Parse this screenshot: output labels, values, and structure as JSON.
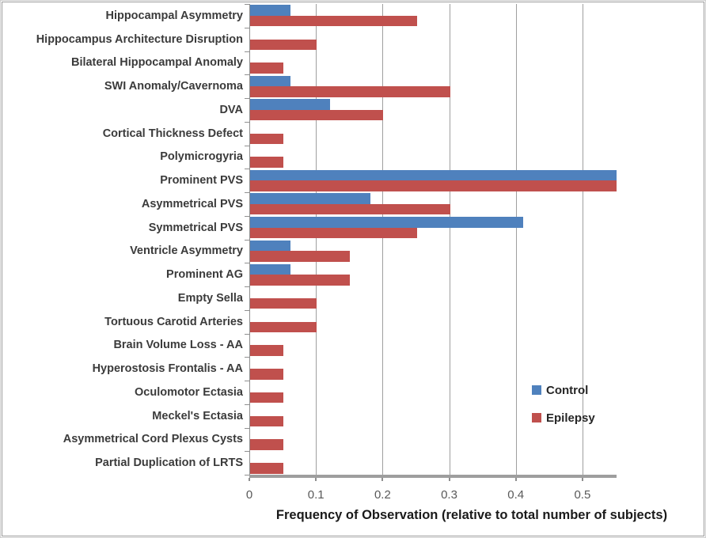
{
  "chart_data": {
    "type": "bar",
    "orientation": "horizontal",
    "title": "",
    "xlabel": "Frequency of Observation (relative to total number of subjects)",
    "ylabel": "",
    "xlim": [
      0,
      0.55
    ],
    "x_ticks": [
      0,
      0.1,
      0.2,
      0.3,
      0.4,
      0.5
    ],
    "x_tick_labels": [
      "0",
      "0.1",
      "0.2",
      "0.3",
      "0.4",
      "0.5"
    ],
    "grid": "vertical-major",
    "legend_position": "right-middle",
    "categories": [
      "Hippocampal Asymmetry",
      "Hippocampus Architecture Disruption",
      "Bilateral Hippocampal Anomaly",
      "SWI Anomaly/Cavernoma",
      "DVA",
      "Cortical Thickness Defect",
      "Polymicrogyria",
      "Prominent PVS",
      "Asymmetrical PVS",
      "Symmetrical PVS",
      "Ventricle Asymmetry",
      "Prominent AG",
      "Empty Sella",
      "Tortuous Carotid Arteries",
      "Brain Volume Loss - AA",
      "Hyperostosis Frontalis - AA",
      "Oculomotor Ectasia",
      "Meckel's Ectasia",
      "Asymmetrical Cord Plexus Cysts",
      "Partial Duplication of LRTS"
    ],
    "series": [
      {
        "name": "Control",
        "color": "#4f81bd",
        "values": [
          0.06,
          0,
          0,
          0.06,
          0.12,
          0,
          0,
          0.55,
          0.18,
          0.41,
          0.06,
          0.06,
          0,
          0,
          0,
          0,
          0,
          0,
          0,
          0
        ]
      },
      {
        "name": "Epilepsy",
        "color": "#c0504d",
        "values": [
          0.25,
          0.1,
          0.05,
          0.3,
          0.2,
          0.05,
          0.05,
          0.55,
          0.3,
          0.25,
          0.15,
          0.15,
          0.1,
          0.1,
          0.05,
          0.05,
          0.05,
          0.05,
          0.05,
          0.05
        ]
      }
    ],
    "colors": {
      "gridline": "#9f9f9f",
      "axis_line": "#9e9e9e",
      "category_text": "#3b3b3b",
      "tick_text": "#595959",
      "title_text": "#1a1a1a"
    }
  }
}
